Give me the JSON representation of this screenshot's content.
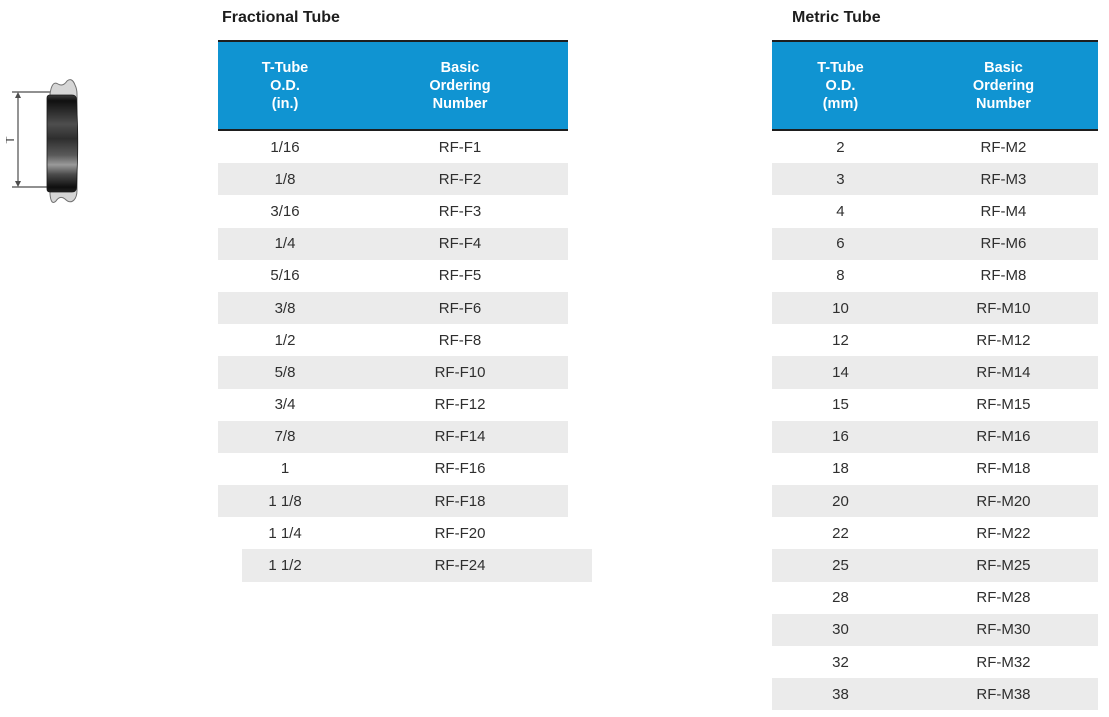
{
  "colors": {
    "header-blue": "#1094d2",
    "table-border": "#1e1e1e",
    "row-alt": "#ebebeb",
    "text": "#2f2f2f",
    "diagram-line": "#4d4d4d",
    "ferrule-gray": "#d6d6d6"
  },
  "diagram": {
    "dimension_label": "T"
  },
  "fractional": {
    "title": "Fractional Tube",
    "columns": [
      "T-Tube\nO.D.\n(in.)",
      "Basic\nOrdering\nNumber"
    ],
    "rows": [
      [
        "1/16",
        "RF-F1"
      ],
      [
        "1/8",
        "RF-F2"
      ],
      [
        "3/16",
        "RF-F3"
      ],
      [
        "1/4",
        "RF-F4"
      ],
      [
        "5/16",
        "RF-F5"
      ],
      [
        "3/8",
        "RF-F6"
      ],
      [
        "1/2",
        "RF-F8"
      ],
      [
        "5/8",
        "RF-F10"
      ],
      [
        "3/4",
        "RF-F12"
      ],
      [
        "7/8",
        "RF-F14"
      ],
      [
        "1",
        "RF-F16"
      ],
      [
        "1 1/8",
        "RF-F18"
      ],
      [
        "1 1/4",
        "RF-F20"
      ],
      [
        "1 1/2",
        "RF-F24"
      ]
    ]
  },
  "metric": {
    "title": "Metric Tube",
    "columns": [
      "T-Tube\nO.D.\n(mm)",
      "Basic\nOrdering\nNumber"
    ],
    "rows": [
      [
        "2",
        "RF-M2"
      ],
      [
        "3",
        "RF-M3"
      ],
      [
        "4",
        "RF-M4"
      ],
      [
        "6",
        "RF-M6"
      ],
      [
        "8",
        "RF-M8"
      ],
      [
        "10",
        "RF-M10"
      ],
      [
        "12",
        "RF-M12"
      ],
      [
        "14",
        "RF-M14"
      ],
      [
        "15",
        "RF-M15"
      ],
      [
        "16",
        "RF-M16"
      ],
      [
        "18",
        "RF-M18"
      ],
      [
        "20",
        "RF-M20"
      ],
      [
        "22",
        "RF-M22"
      ],
      [
        "25",
        "RF-M25"
      ],
      [
        "28",
        "RF-M28"
      ],
      [
        "30",
        "RF-M30"
      ],
      [
        "32",
        "RF-M32"
      ],
      [
        "38",
        "RF-M38"
      ]
    ]
  }
}
